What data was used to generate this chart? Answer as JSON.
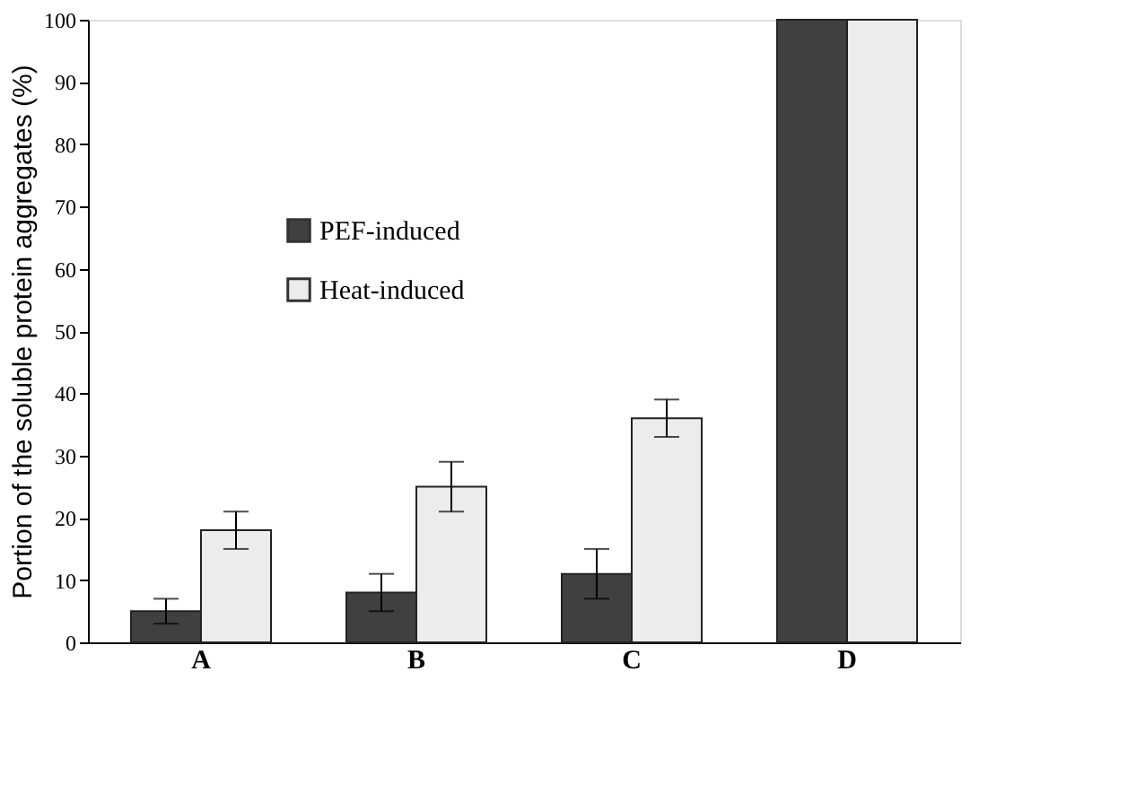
{
  "chart_data": {
    "type": "bar",
    "ylabel": "Portion of the soluble protein aggregates (%)",
    "categories": [
      "A",
      "B",
      "C",
      "D"
    ],
    "series": [
      {
        "name": "PEF-induced",
        "color": "#404040",
        "values": [
          5,
          8,
          11,
          100
        ],
        "errors": [
          2,
          3,
          4,
          null
        ]
      },
      {
        "name": "Heat-induced",
        "color": "#ececec",
        "values": [
          18,
          25,
          36,
          100
        ],
        "errors": [
          3,
          4,
          3,
          null
        ]
      }
    ],
    "ylim": [
      0,
      100
    ],
    "yticks": [
      0,
      10,
      20,
      30,
      40,
      50,
      60,
      70,
      80,
      90,
      100
    ],
    "grid": false,
    "legend": "top left"
  }
}
